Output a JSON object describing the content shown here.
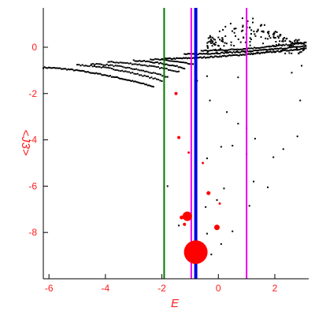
{
  "chart_data": {
    "type": "scatter",
    "title": "",
    "xlabel": "E",
    "ylabel": "<J3>",
    "xlim": [
      -6.2,
      3.2
    ],
    "ylim": [
      -10.0,
      1.7
    ],
    "grid": false,
    "x_ticks": [
      -6,
      -4,
      -2,
      0,
      2
    ],
    "y_ticks": [
      0,
      -2,
      -4,
      -6,
      -8
    ],
    "tick_color": "#ff1a1a",
    "label_color": "#ff1a1a",
    "axis_color": "#000000",
    "point_color": "#000000",
    "vlines": [
      {
        "x": -1.92,
        "color": "#007a00",
        "width": 2
      },
      {
        "x": -0.96,
        "color": "#ee00ee",
        "width": 2
      },
      {
        "x": -0.8,
        "color": "#0000dd",
        "width": 4
      },
      {
        "x": 1.0,
        "color": "#ee00ee",
        "width": 2
      }
    ],
    "bands": [
      {
        "x0": -6.2,
        "y0": -0.88,
        "x1": -2.3,
        "y1": -1.7,
        "n": 80
      },
      {
        "x0": -5.0,
        "y0": -0.77,
        "x1": -2.0,
        "y1": -1.45,
        "n": 50
      },
      {
        "x0": -4.5,
        "y0": -0.72,
        "x1": -1.8,
        "y1": -1.28,
        "n": 45
      },
      {
        "x0": -3.9,
        "y0": -0.64,
        "x1": -1.4,
        "y1": -1.05,
        "n": 42
      },
      {
        "x0": -3.0,
        "y0": -0.58,
        "x1": -1.2,
        "y1": -0.9,
        "n": 35
      },
      {
        "x0": -2.4,
        "y0": -0.52,
        "x1": -0.9,
        "y1": -0.75,
        "n": 28
      },
      {
        "x0": -2.0,
        "y0": -0.5,
        "x1": 3.1,
        "y1": -0.05,
        "n": 120
      },
      {
        "x0": -1.2,
        "y0": -0.3,
        "x1": 3.1,
        "y1": 0.05,
        "n": 90
      },
      {
        "x0": -0.6,
        "y0": -0.15,
        "x1": 3.1,
        "y1": 0.2,
        "n": 70
      }
    ],
    "cloud": {
      "x0": -0.4,
      "x1": 3.1,
      "y0": -0.3,
      "y1": 1.3,
      "n": 190,
      "peak_x": 1.0
    },
    "scatter_points": [
      {
        "x": -0.75,
        "y": -1.45
      },
      {
        "x": -0.4,
        "y": -1.25
      },
      {
        "x": 0.7,
        "y": -1.3
      },
      {
        "x": 2.6,
        "y": -1.1
      },
      {
        "x": 2.95,
        "y": -0.8
      },
      {
        "x": -0.3,
        "y": -2.3
      },
      {
        "x": 2.9,
        "y": -2.3
      },
      {
        "x": 0.3,
        "y": -2.8
      },
      {
        "x": 0.7,
        "y": -3.3
      },
      {
        "x": 1.0,
        "y": -3.5
      },
      {
        "x": 1.3,
        "y": -3.95
      },
      {
        "x": 0.5,
        "y": -4.25
      },
      {
        "x": 0.1,
        "y": -4.3
      },
      {
        "x": -0.4,
        "y": -4.8
      },
      {
        "x": 2.3,
        "y": -4.4
      },
      {
        "x": 2.8,
        "y": -3.85
      },
      {
        "x": 1.0,
        "y": -4.6
      },
      {
        "x": 1.95,
        "y": -4.75
      },
      {
        "x": -1.8,
        "y": -6.0
      },
      {
        "x": 0.2,
        "y": -6.1
      },
      {
        "x": 1.25,
        "y": -5.8
      },
      {
        "x": 1.75,
        "y": -6.05
      },
      {
        "x": -0.05,
        "y": -6.6
      },
      {
        "x": 1.1,
        "y": -6.85
      },
      {
        "x": -0.45,
        "y": -6.9
      },
      {
        "x": -0.8,
        "y": -7.4
      },
      {
        "x": -1.4,
        "y": -7.7
      },
      {
        "x": 0.5,
        "y": -7.95
      },
      {
        "x": -0.4,
        "y": -8.05
      },
      {
        "x": 0.1,
        "y": -8.5
      },
      {
        "x": -0.25,
        "y": -8.95
      }
    ],
    "red_bubbles": [
      {
        "x": -1.5,
        "y": -2.0,
        "size": 2
      },
      {
        "x": -1.4,
        "y": -3.9,
        "size": 2
      },
      {
        "x": -1.05,
        "y": -4.55,
        "size": 1.5
      },
      {
        "x": -0.55,
        "y": -5.0,
        "size": 1.5
      },
      {
        "x": -0.35,
        "y": -6.3,
        "size": 2.5
      },
      {
        "x": 0.05,
        "y": -6.75,
        "size": 1.5
      },
      {
        "x": -1.1,
        "y": -7.3,
        "size": 6
      },
      {
        "x": -1.3,
        "y": -7.35,
        "size": 2.5
      },
      {
        "x": -1.2,
        "y": -7.65,
        "size": 2
      },
      {
        "x": -0.05,
        "y": -7.78,
        "size": 3.5
      },
      {
        "x": -0.8,
        "y": -8.85,
        "size": 15
      }
    ],
    "bubble_color": "#ff0000"
  }
}
